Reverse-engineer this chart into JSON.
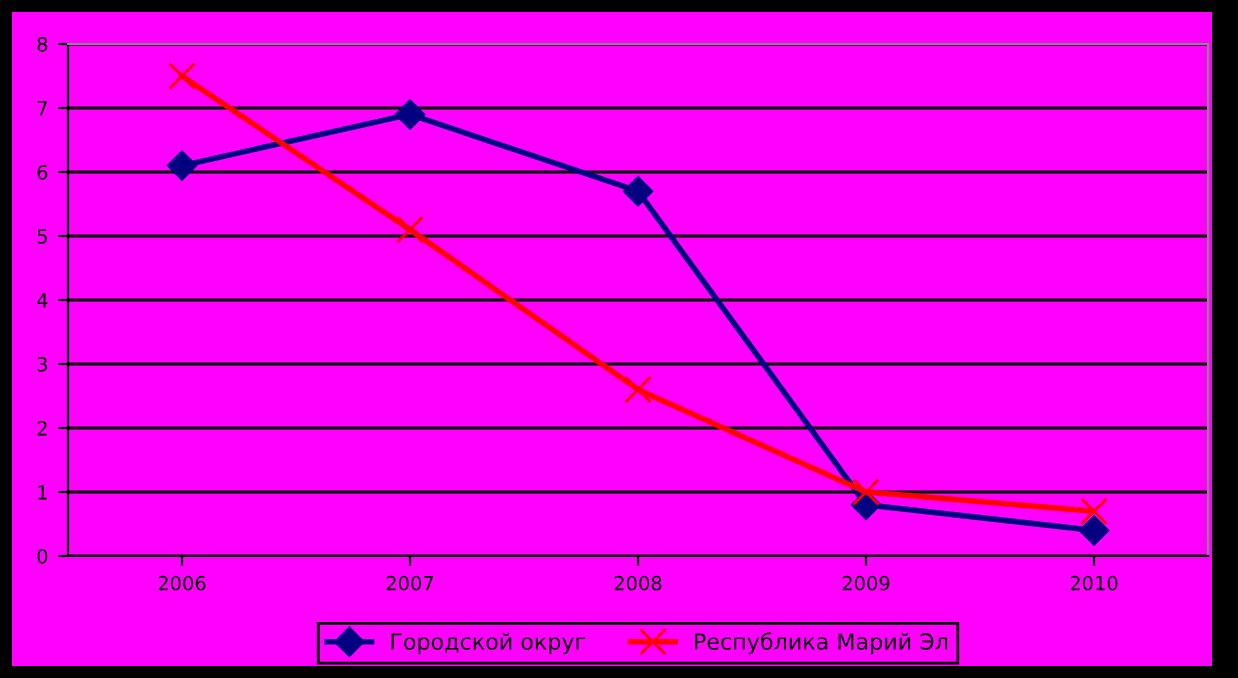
{
  "chart_data": {
    "type": "line",
    "categories": [
      "2006",
      "2007",
      "2008",
      "2009",
      "2010"
    ],
    "series": [
      {
        "name": "Городской округ",
        "color": "#000080",
        "marker": "diamond",
        "values": [
          6.1,
          6.9,
          5.7,
          0.8,
          0.4
        ]
      },
      {
        "name": "Республика Марий Эл",
        "color": "#ff0000",
        "marker": "cross",
        "values": [
          7.5,
          5.1,
          2.6,
          1.0,
          0.7
        ]
      }
    ],
    "ylim": [
      0,
      8
    ],
    "yticks": [
      0,
      1,
      2,
      3,
      4,
      5,
      6,
      7,
      8
    ],
    "grid": "y",
    "legend": "bottom",
    "line_style": "solid"
  }
}
